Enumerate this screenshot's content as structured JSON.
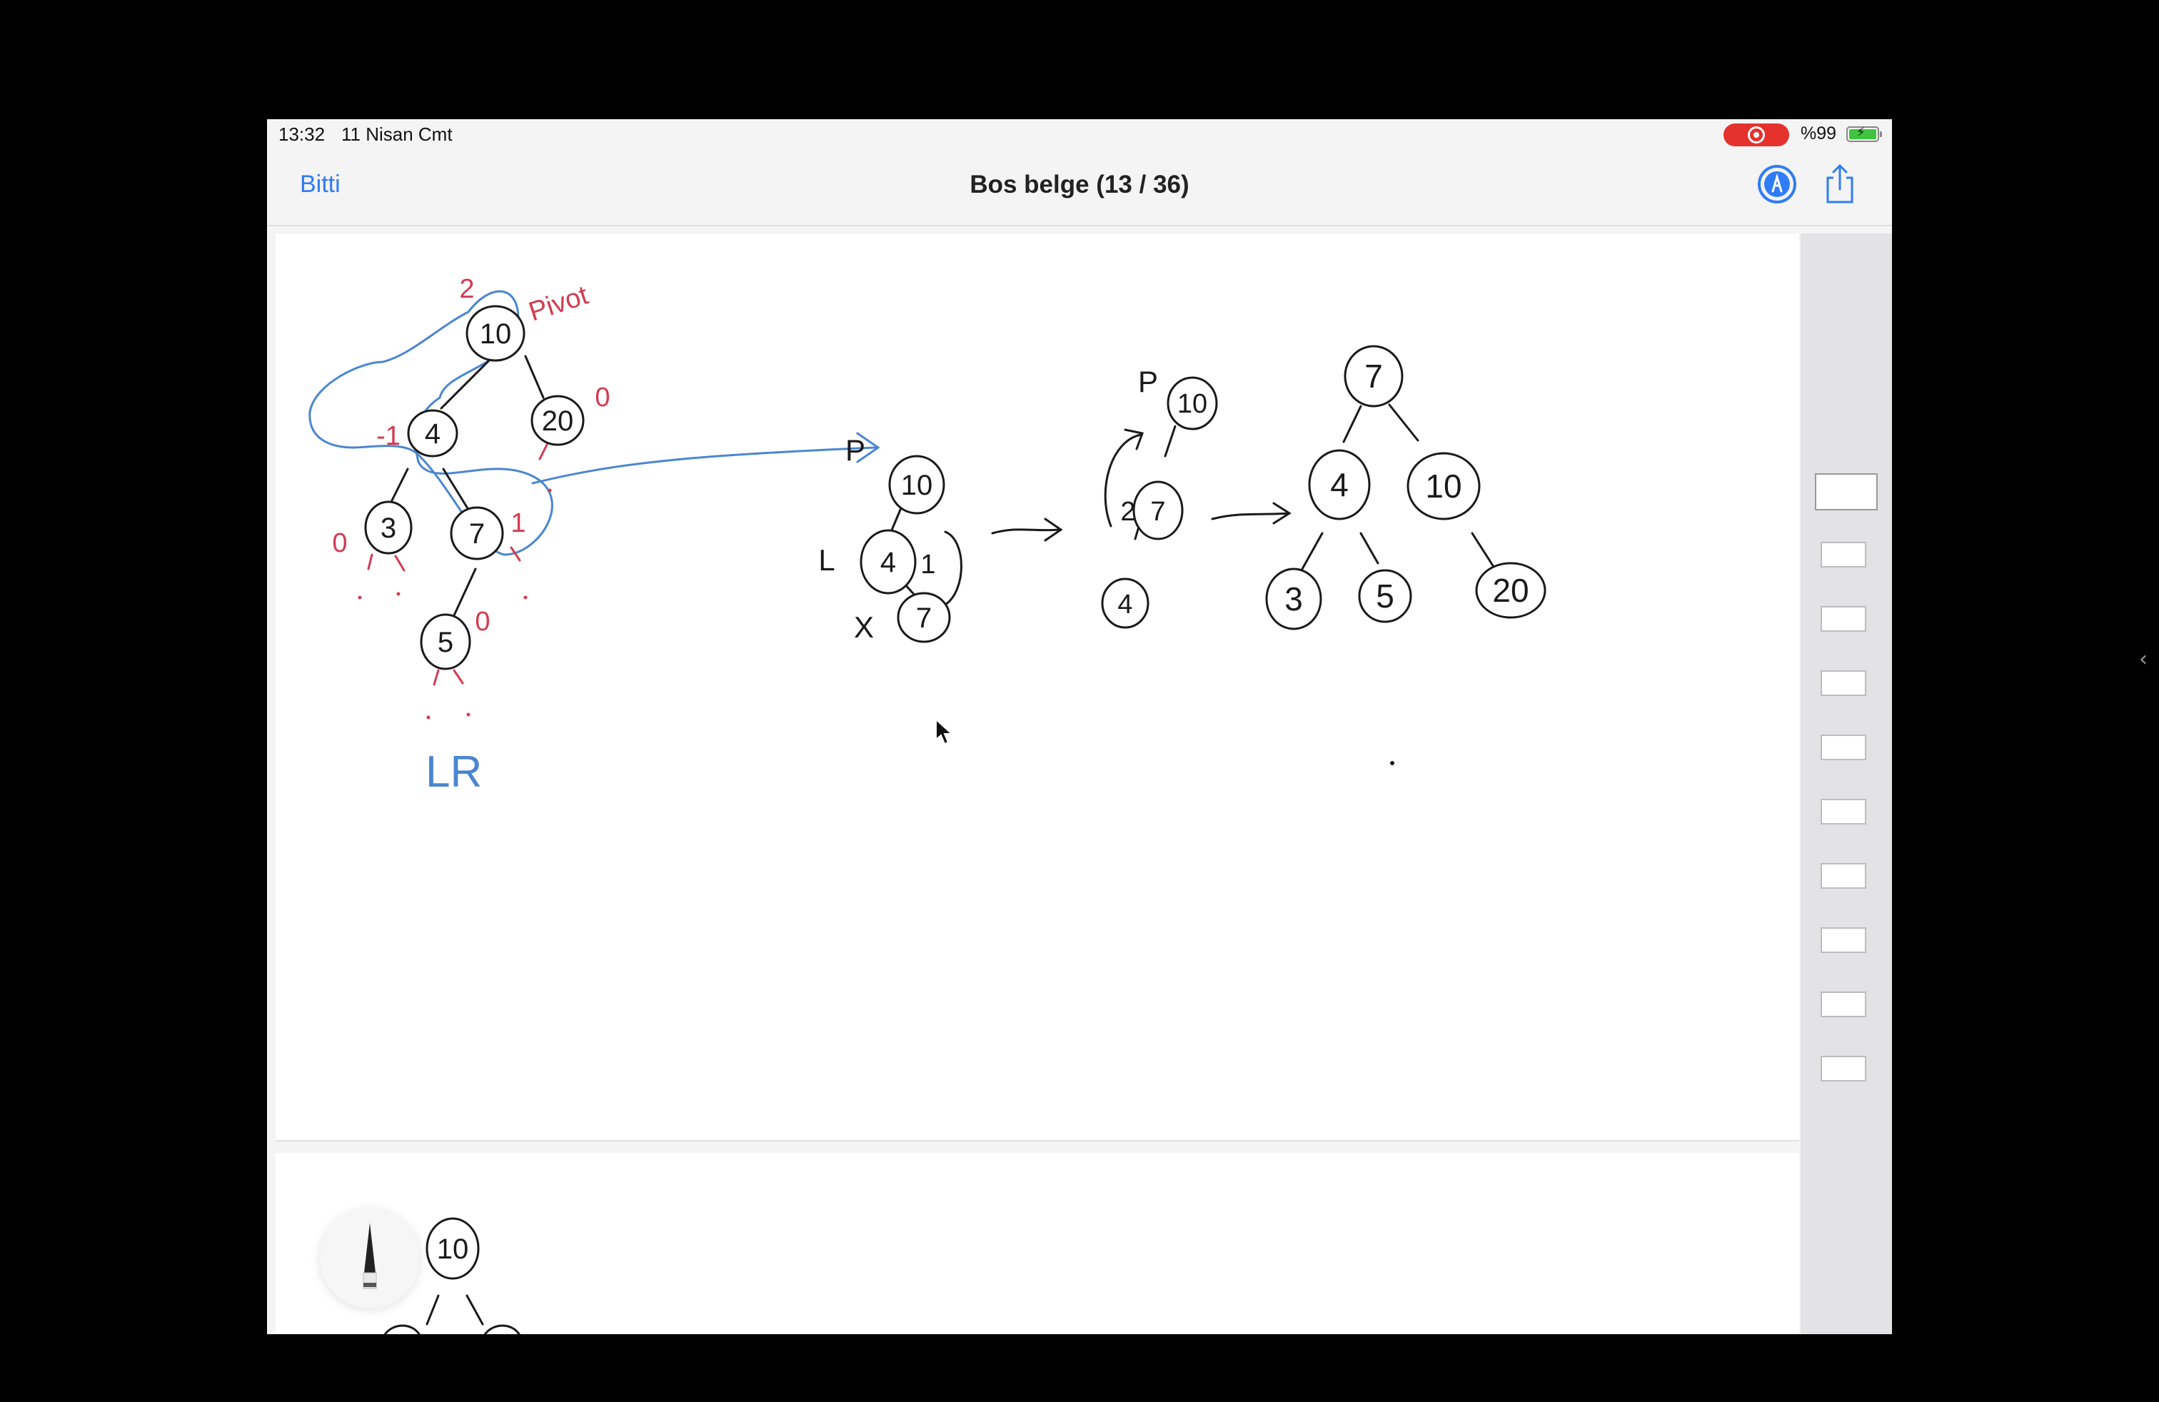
{
  "status_bar": {
    "time": "13:32",
    "date": "11 Nisan Cmt",
    "battery_percent": "%99",
    "recording_icon": "screen-recording-icon",
    "battery_icon": "battery-charging-icon"
  },
  "nav_bar": {
    "done_label": "Bitti",
    "title": "Bos belge (13 / 36)",
    "markup_icon": "markup-pen-icon",
    "share_icon": "share-icon"
  },
  "colors": {
    "accent": "#2f7cf6",
    "ink": "#1a1a1a",
    "red_ink": "#d23c50",
    "blue_ink": "#4a86d0",
    "recording": "#e5322d",
    "battery": "#3ec43e"
  },
  "page1": {
    "unbalanced_tree": {
      "balance_root": "2",
      "pivot_label": "Pivot",
      "nodes": [
        "10",
        "4",
        "20",
        "3",
        "7",
        "5"
      ],
      "balances": {
        "n4": "-1",
        "n20": "0",
        "n3": "0",
        "n7": "1",
        "n5": "0"
      },
      "rotation_label": "LR"
    },
    "step1": {
      "p_label": "P",
      "l_label": "L",
      "x_label": "X",
      "nodes": [
        "10",
        "4",
        "7"
      ],
      "side_label": "1"
    },
    "step2": {
      "p_label": "P",
      "side_label": "2",
      "nodes": [
        "10",
        "7",
        "4"
      ]
    },
    "result_tree": {
      "nodes": [
        "7",
        "4",
        "10",
        "3",
        "5",
        "20"
      ]
    }
  },
  "page2": {
    "nodes": [
      "10"
    ]
  },
  "tools": {
    "pencil_icon": "pencil-tool-icon",
    "cursor_icon": "mouse-pointer-icon",
    "sidebar_toggle_icon": "chevron-left-icon"
  },
  "thumbnails": {
    "count": 10,
    "active_index": 0
  }
}
